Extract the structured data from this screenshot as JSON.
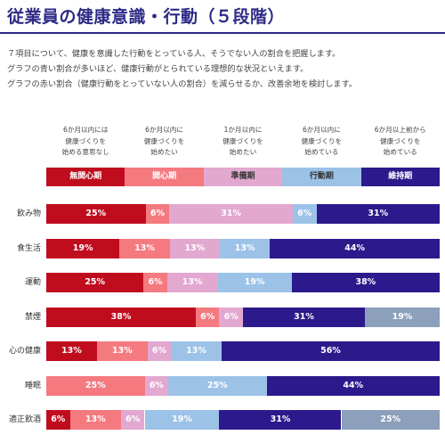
{
  "header": {
    "title": "従業員の健康意識・行動（５段階）",
    "intro_lines": [
      "７項目について、健康を意識した行動をとっている人、そうでない人の割合を把握します。",
      "グラフの青い割合が多いほど、健康行動がとられている理想的な状況といえます。",
      "グラフの赤い割合（健康行動をとっていない人の割合）を減らせるか、改善余地を検討します。"
    ]
  },
  "chart_data": {
    "type": "bar",
    "orientation": "horizontal",
    "stacked": true,
    "normalized": true,
    "stage_names": [
      "無関心期",
      "関心期",
      "準備期",
      "行動期",
      "維持期"
    ],
    "stage_descriptions": [
      [
        "6か月以内には",
        "健康づくりを",
        "始める意思なし"
      ],
      [
        "6か月以内に",
        "健康づくりを",
        "始めたい"
      ],
      [
        "1か月以内に",
        "健康づくりを",
        "始めたい"
      ],
      [
        "6か月以内に",
        "健康づくりを",
        "始めている"
      ],
      [
        "6か月以上前から",
        "健康づくりを",
        "始めている"
      ]
    ],
    "categories": [
      "飲み物",
      "食生活",
      "運動",
      "禁煙",
      "心の健康",
      "睡眠",
      "適正飲酒"
    ],
    "rows": [
      {
        "label": "飲み物",
        "segments": [
          {
            "stage": 0,
            "value": 25
          },
          {
            "stage": 1,
            "value": 6
          },
          {
            "stage": 2,
            "value": 31
          },
          {
            "stage": 3,
            "value": 6
          },
          {
            "stage": 4,
            "value": 31
          }
        ]
      },
      {
        "label": "食生活",
        "segments": [
          {
            "stage": 0,
            "value": 19
          },
          {
            "stage": 1,
            "value": 13
          },
          {
            "stage": 2,
            "value": 13
          },
          {
            "stage": 3,
            "value": 13
          },
          {
            "stage": 4,
            "value": 44
          }
        ]
      },
      {
        "label": "運動",
        "segments": [
          {
            "stage": 0,
            "value": 25
          },
          {
            "stage": 1,
            "value": 6
          },
          {
            "stage": 2,
            "value": 13
          },
          {
            "stage": 3,
            "value": 19
          },
          {
            "stage": 4,
            "value": 38
          }
        ]
      },
      {
        "label": "禁煙",
        "segments": [
          {
            "stage": 0,
            "value": 38
          },
          {
            "stage": 1,
            "value": 6
          },
          {
            "stage": 2,
            "value": 6
          },
          {
            "stage": 4,
            "value": 31
          },
          {
            "stage": 5,
            "value": 19
          }
        ]
      },
      {
        "label": "心の健康",
        "segments": [
          {
            "stage": 0,
            "value": 13
          },
          {
            "stage": 1,
            "value": 13
          },
          {
            "stage": 2,
            "value": 6
          },
          {
            "stage": 3,
            "value": 13
          },
          {
            "stage": 4,
            "value": 56
          }
        ]
      },
      {
        "label": "睡眠",
        "segments": [
          {
            "stage": 1,
            "value": 25
          },
          {
            "stage": 2,
            "value": 6
          },
          {
            "stage": 3,
            "value": 25
          },
          {
            "stage": 4,
            "value": 44
          }
        ]
      },
      {
        "label": "適正飲酒",
        "segments": [
          {
            "stage": 0,
            "value": 6
          },
          {
            "stage": 1,
            "value": 13
          },
          {
            "stage": 2,
            "value": 6
          },
          {
            "stage": 3,
            "value": 19
          },
          {
            "stage": 4,
            "value": 31
          },
          {
            "stage": 5,
            "value": 25
          }
        ]
      }
    ],
    "value_suffix": "%",
    "colors": {
      "stages": [
        "#c00d1e",
        "#f47a80",
        "#e2a8d0",
        "#9cc2e8",
        "#2c1a8c",
        "#8c9fbb"
      ],
      "stage_header_text": [
        "#ffffff",
        "#ffffff",
        "#333333",
        "#333333",
        "#ffffff"
      ],
      "title": "#2e2a86"
    },
    "xlim": [
      0,
      100
    ]
  }
}
